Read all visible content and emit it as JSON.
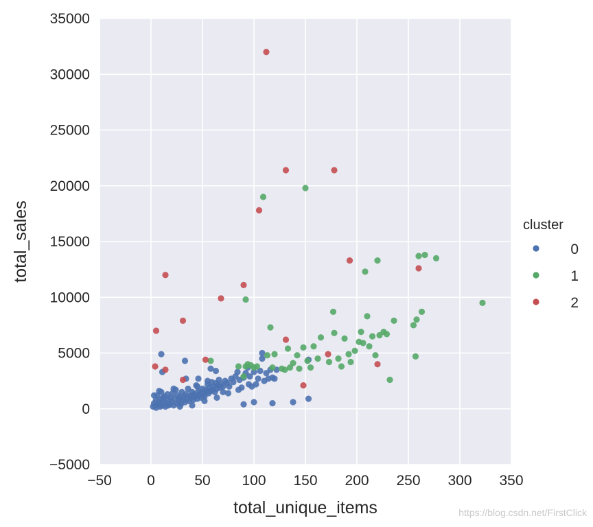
{
  "chart_data": {
    "type": "scatter",
    "xlabel": "total_unique_items",
    "ylabel": "total_sales",
    "xlim": [
      -50,
      350
    ],
    "ylim": [
      -5000,
      35000
    ],
    "x_ticks": [
      -50,
      0,
      50,
      100,
      150,
      200,
      250,
      300,
      350
    ],
    "y_ticks": [
      -5000,
      0,
      5000,
      10000,
      15000,
      20000,
      25000,
      30000,
      35000
    ],
    "x_tick_labels": [
      "−50",
      "0",
      "50",
      "100",
      "150",
      "200",
      "250",
      "300",
      "350"
    ],
    "y_tick_labels": [
      "−5000",
      "0",
      "5000",
      "10000",
      "15000",
      "20000",
      "25000",
      "30000",
      "35000"
    ],
    "grid": true,
    "legend": {
      "title": "cluster",
      "placement": "right"
    },
    "series": [
      {
        "name": "0",
        "color": "#4c72b0",
        "points": [
          [
            2,
            200
          ],
          [
            3,
            500
          ],
          [
            4,
            300
          ],
          [
            5,
            800
          ],
          [
            5,
            100
          ],
          [
            6,
            1200
          ],
          [
            7,
            400
          ],
          [
            8,
            600
          ],
          [
            9,
            200
          ],
          [
            10,
            900
          ],
          [
            10,
            1500
          ],
          [
            11,
            300
          ],
          [
            12,
            700
          ],
          [
            13,
            1100
          ],
          [
            14,
            200
          ],
          [
            15,
            500
          ],
          [
            16,
            1300
          ],
          [
            17,
            800
          ],
          [
            18,
            400
          ],
          [
            19,
            1000
          ],
          [
            20,
            600
          ],
          [
            21,
            1400
          ],
          [
            22,
            300
          ],
          [
            23,
            900
          ],
          [
            24,
            1700
          ],
          [
            25,
            500
          ],
          [
            26,
            1200
          ],
          [
            27,
            700
          ],
          [
            28,
            1000
          ],
          [
            29,
            400
          ],
          [
            30,
            1500
          ],
          [
            31,
            800
          ],
          [
            32,
            1100
          ],
          [
            33,
            600
          ],
          [
            34,
            1300
          ],
          [
            35,
            900
          ],
          [
            36,
            1800
          ],
          [
            37,
            700
          ],
          [
            38,
            1200
          ],
          [
            39,
            1000
          ],
          [
            40,
            1500
          ],
          [
            41,
            800
          ],
          [
            42,
            1300
          ],
          [
            43,
            1100
          ],
          [
            44,
            2100
          ],
          [
            45,
            900
          ],
          [
            46,
            1600
          ],
          [
            47,
            1200
          ],
          [
            48,
            1400
          ],
          [
            49,
            1000
          ],
          [
            50,
            1800
          ],
          [
            51,
            1300
          ],
          [
            52,
            1100
          ],
          [
            53,
            1700
          ],
          [
            54,
            1500
          ],
          [
            55,
            2200
          ],
          [
            56,
            1400
          ],
          [
            57,
            1900
          ],
          [
            58,
            1600
          ],
          [
            59,
            2400
          ],
          [
            60,
            1700
          ],
          [
            61,
            2000
          ],
          [
            62,
            1500
          ],
          [
            63,
            2300
          ],
          [
            64,
            1800
          ],
          [
            65,
            2100
          ],
          [
            66,
            2600
          ],
          [
            67,
            1900
          ],
          [
            68,
            2200
          ],
          [
            70,
            2000
          ],
          [
            72,
            2500
          ],
          [
            74,
            2300
          ],
          [
            76,
            2000
          ],
          [
            78,
            2700
          ],
          [
            80,
            2400
          ],
          [
            82,
            2900
          ],
          [
            84,
            3300
          ],
          [
            86,
            2600
          ],
          [
            88,
            1900
          ],
          [
            90,
            2800
          ],
          [
            92,
            3200
          ],
          [
            94,
            3700
          ],
          [
            96,
            2900
          ],
          [
            98,
            2000
          ],
          [
            100,
            3300
          ],
          [
            102,
            2200
          ],
          [
            104,
            2700
          ],
          [
            106,
            3400
          ],
          [
            108,
            4500
          ],
          [
            108,
            5000
          ],
          [
            110,
            2500
          ],
          [
            112,
            3200
          ],
          [
            114,
            2700
          ],
          [
            116,
            3500
          ],
          [
            118,
            2800
          ],
          [
            120,
            2700
          ],
          [
            122,
            3500
          ],
          [
            90,
            400
          ],
          [
            100,
            600
          ],
          [
            118,
            500
          ],
          [
            138,
            600
          ],
          [
            153,
            900
          ],
          [
            153,
            4400
          ],
          [
            10,
            4900
          ],
          [
            11,
            3300
          ],
          [
            33,
            4300
          ],
          [
            63,
            3400
          ],
          [
            45,
            2000
          ],
          [
            55,
            2500
          ],
          [
            70,
            1500
          ],
          [
            3,
            1200
          ],
          [
            8,
            1600
          ],
          [
            12,
            1000
          ],
          [
            17,
            300
          ],
          [
            22,
            1800
          ],
          [
            28,
            200
          ],
          [
            34,
            2700
          ],
          [
            40,
            300
          ],
          [
            46,
            2700
          ],
          [
            52,
            700
          ],
          [
            58,
            3600
          ],
          [
            64,
            1000
          ],
          [
            75,
            1400
          ],
          [
            85,
            1700
          ],
          [
            95,
            2200
          ]
        ]
      },
      {
        "name": "1",
        "color": "#55a868",
        "points": [
          [
            58,
            4300
          ],
          [
            85,
            3800
          ],
          [
            90,
            2900
          ],
          [
            92,
            3800
          ],
          [
            94,
            4000
          ],
          [
            97,
            3900
          ],
          [
            100,
            3700
          ],
          [
            103,
            3800
          ],
          [
            109,
            19000
          ],
          [
            113,
            4800
          ],
          [
            116,
            7300
          ],
          [
            118,
            3700
          ],
          [
            120,
            4900
          ],
          [
            127,
            3600
          ],
          [
            130,
            3500
          ],
          [
            133,
            5400
          ],
          [
            135,
            3700
          ],
          [
            138,
            4100
          ],
          [
            142,
            4800
          ],
          [
            144,
            3600
          ],
          [
            148,
            5500
          ],
          [
            150,
            19800
          ],
          [
            152,
            4300
          ],
          [
            155,
            3700
          ],
          [
            158,
            5600
          ],
          [
            162,
            4500
          ],
          [
            165,
            6400
          ],
          [
            173,
            4200
          ],
          [
            177,
            8700
          ],
          [
            178,
            6800
          ],
          [
            182,
            4500
          ],
          [
            185,
            3800
          ],
          [
            188,
            6300
          ],
          [
            192,
            4900
          ],
          [
            194,
            4200
          ],
          [
            198,
            5200
          ],
          [
            202,
            6000
          ],
          [
            204,
            6900
          ],
          [
            206,
            5900
          ],
          [
            208,
            12300
          ],
          [
            210,
            8300
          ],
          [
            212,
            5600
          ],
          [
            215,
            6500
          ],
          [
            218,
            4800
          ],
          [
            220,
            13300
          ],
          [
            222,
            6600
          ],
          [
            226,
            6900
          ],
          [
            229,
            6700
          ],
          [
            232,
            2600
          ],
          [
            236,
            7900
          ],
          [
            255,
            7500
          ],
          [
            257,
            4700
          ],
          [
            258,
            8000
          ],
          [
            260,
            13700
          ],
          [
            263,
            8700
          ],
          [
            266,
            13800
          ],
          [
            277,
            13500
          ],
          [
            322,
            9500
          ],
          [
            92,
            9800
          ]
        ]
      },
      {
        "name": "2",
        "color": "#c44e52",
        "points": [
          [
            4,
            3800
          ],
          [
            5,
            7000
          ],
          [
            14,
            12000
          ],
          [
            14,
            3500
          ],
          [
            31,
            7900
          ],
          [
            31,
            2600
          ],
          [
            53,
            4400
          ],
          [
            68,
            9900
          ],
          [
            90,
            11100
          ],
          [
            105,
            17800
          ],
          [
            112,
            32000
          ],
          [
            131,
            21400
          ],
          [
            131,
            6200
          ],
          [
            148,
            2100
          ],
          [
            172,
            4900
          ],
          [
            178,
            21400
          ],
          [
            193,
            13300
          ],
          [
            220,
            4000
          ],
          [
            260,
            12600
          ]
        ]
      }
    ]
  },
  "watermark": "https://blog.csdn.net/FirstClick"
}
